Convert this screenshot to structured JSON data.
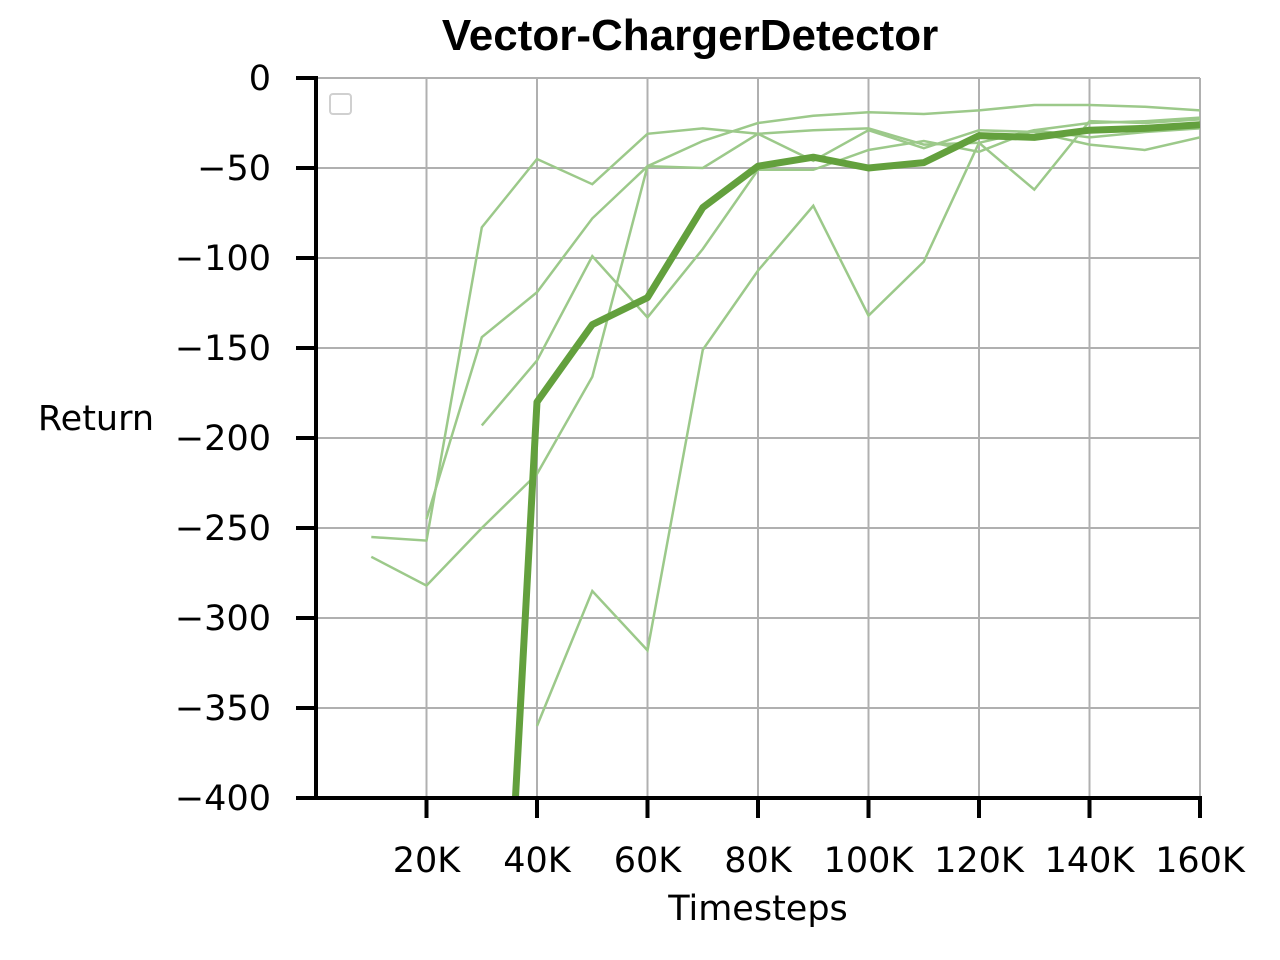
{
  "chart_data": {
    "type": "line",
    "title": "Vector-ChargerDetector",
    "xlabel": "Timesteps",
    "ylabel": "Return",
    "xlim": [
      0,
      160000
    ],
    "ylim": [
      -400,
      0
    ],
    "xticks": [
      20000,
      40000,
      60000,
      80000,
      100000,
      120000,
      140000,
      160000
    ],
    "xtick_labels": [
      "20K",
      "40K",
      "60K",
      "80K",
      "100K",
      "120K",
      "140K",
      "160K"
    ],
    "yticks": [
      0,
      -50,
      -100,
      -150,
      -200,
      -250,
      -300,
      -350,
      -400
    ],
    "ytick_labels": [
      "0",
      "−50",
      "−100",
      "−150",
      "−200",
      "−250",
      "−300",
      "−350",
      "−400"
    ],
    "grid": true,
    "legend": {
      "placement": "top-left",
      "entries": []
    },
    "colors": {
      "run": "#9cc98a",
      "mean": "#63a03d"
    },
    "x": [
      10000,
      20000,
      30000,
      40000,
      50000,
      60000,
      70000,
      80000,
      90000,
      100000,
      110000,
      120000,
      130000,
      140000,
      150000,
      160000
    ],
    "runs": [
      {
        "values": [
          -255,
          -257,
          -83,
          -45,
          -59,
          -31,
          -28,
          -31,
          -29,
          -28,
          -37,
          -36,
          -29,
          -33,
          -30,
          -28
        ]
      },
      {
        "values": [
          -266,
          -282,
          -250,
          -220,
          -166,
          -49,
          -50,
          -31,
          -46,
          -29,
          -39,
          -29,
          -30,
          -37,
          -40,
          -33
        ]
      },
      {
        "values": [
          null,
          -245,
          -144,
          -119,
          -78,
          -49,
          -35,
          -25,
          -21,
          -19,
          -20,
          -18,
          -15,
          -15,
          -16,
          -18
        ]
      },
      {
        "values": [
          null,
          null,
          -193,
          -157,
          -99,
          -133,
          -95,
          -51,
          -51,
          -40,
          -35,
          -41,
          -29,
          -25,
          -24,
          -22
        ]
      },
      {
        "values": [
          null,
          null,
          null,
          -360,
          -285,
          -318,
          -151,
          -107,
          -71,
          -132,
          -102,
          -36,
          -62,
          -24,
          -25,
          -23
        ]
      }
    ],
    "series": [
      {
        "values": [
          null,
          null,
          null,
          -180,
          -137,
          -122,
          -72,
          -49,
          -44,
          -50,
          -47,
          -32,
          -33,
          -29,
          -28,
          -26
        ]
      }
    ]
  }
}
